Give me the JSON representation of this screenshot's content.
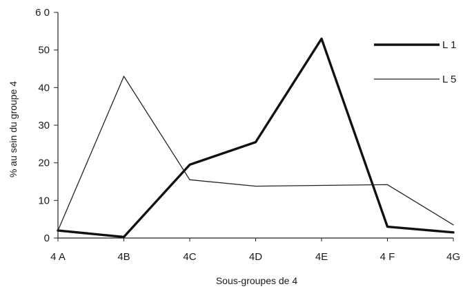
{
  "chart_data": {
    "type": "line",
    "title": "",
    "xlabel": "Sous-groupes de 4",
    "ylabel": "% au sein du groupe 4",
    "categories": [
      "4 A",
      "4B",
      "4C",
      "4D",
      "4E",
      "4 F",
      "4G"
    ],
    "ylim": [
      0,
      60
    ],
    "yticks": [
      0,
      10,
      20,
      30,
      40,
      50,
      60
    ],
    "ytick_labels": [
      "0",
      "10",
      "20",
      "30",
      "40",
      "50",
      "6 0"
    ],
    "grid": false,
    "legend_position": "top-right",
    "series": [
      {
        "name": "L 1",
        "values": [
          2,
          0.3,
          19.5,
          25.5,
          53,
          3,
          1.5
        ],
        "color": "#111111",
        "weight": "thick"
      },
      {
        "name": "L 5",
        "values": [
          2,
          43,
          15.5,
          13.8,
          14,
          14.2,
          3.5
        ],
        "color": "#222222",
        "weight": "thin"
      }
    ]
  }
}
